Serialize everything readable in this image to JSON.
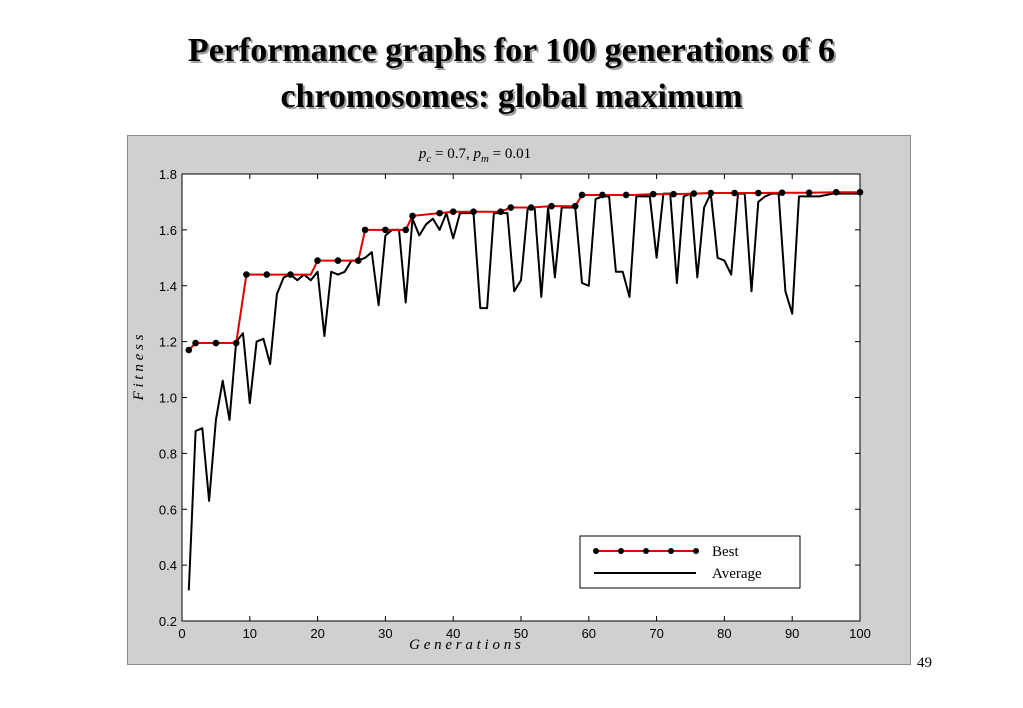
{
  "slide": {
    "title_line1": "Performance graphs for 100 generations of 6",
    "title_line2": "chromosomes: global maximum",
    "page_number": "49"
  },
  "colors": {
    "best": "#e00000",
    "average": "#000000",
    "frame": "#d0d0d0",
    "plot_bg": "#ffffff"
  },
  "chart_data": {
    "type": "line",
    "title_parts": {
      "pc_symbol": "p",
      "pc_sub": "c",
      "pc_value": " = 0.7,  ",
      "pm_symbol": "p",
      "pm_sub": "m",
      "pm_value": " = 0.01"
    },
    "xlabel": "G e n e r a t i o n s",
    "ylabel": "F i t n e s s",
    "xlim": [
      0,
      100
    ],
    "ylim": [
      0.2,
      1.8
    ],
    "xticks": [
      0,
      10,
      20,
      30,
      40,
      50,
      60,
      70,
      80,
      90,
      100
    ],
    "yticks": [
      0.2,
      0.4,
      0.6,
      0.8,
      1.0,
      1.2,
      1.4,
      1.6,
      1.8
    ],
    "ytick_labels": [
      "0.2",
      "0.4",
      "0.6",
      "0.8",
      "1.0",
      "1.2",
      "1.4",
      "1.6",
      "1.8"
    ],
    "grid": false,
    "legend_position": "bottom-right",
    "series": [
      {
        "name": "Best",
        "style": "line-markers",
        "points": [
          [
            1,
            1.17
          ],
          [
            2,
            1.195
          ],
          [
            5,
            1.195
          ],
          [
            8,
            1.195
          ],
          [
            9.5,
            1.44
          ],
          [
            12.5,
            1.44
          ],
          [
            16,
            1.44
          ],
          [
            19,
            1.44
          ],
          [
            20,
            1.49
          ],
          [
            23,
            1.49
          ],
          [
            26,
            1.49
          ],
          [
            27,
            1.6
          ],
          [
            30,
            1.6
          ],
          [
            33,
            1.6
          ],
          [
            34,
            1.65
          ],
          [
            38,
            1.66
          ],
          [
            40,
            1.665
          ],
          [
            43,
            1.665
          ],
          [
            47,
            1.665
          ],
          [
            48.5,
            1.68
          ],
          [
            51.5,
            1.68
          ],
          [
            54.5,
            1.685
          ],
          [
            58,
            1.685
          ],
          [
            59,
            1.725
          ],
          [
            62,
            1.725
          ],
          [
            65.5,
            1.725
          ],
          [
            66.5,
            1.725
          ],
          [
            69.5,
            1.728
          ],
          [
            72.5,
            1.728
          ],
          [
            75.5,
            1.73
          ],
          [
            78,
            1.732
          ],
          [
            81.5,
            1.732
          ],
          [
            85,
            1.732
          ],
          [
            88.5,
            1.733
          ],
          [
            92.5,
            1.733
          ],
          [
            96.5,
            1.735
          ],
          [
            100,
            1.735
          ]
        ],
        "markers": [
          [
            1,
            1.17
          ],
          [
            2,
            1.195
          ],
          [
            5,
            1.195
          ],
          [
            8,
            1.195
          ],
          [
            9.5,
            1.44
          ],
          [
            12.5,
            1.44
          ],
          [
            16,
            1.44
          ],
          [
            20,
            1.49
          ],
          [
            23,
            1.49
          ],
          [
            26,
            1.49
          ],
          [
            27,
            1.6
          ],
          [
            30,
            1.6
          ],
          [
            33,
            1.6
          ],
          [
            34,
            1.65
          ],
          [
            38,
            1.66
          ],
          [
            40,
            1.665
          ],
          [
            43,
            1.665
          ],
          [
            47,
            1.665
          ],
          [
            48.5,
            1.68
          ],
          [
            51.5,
            1.68
          ],
          [
            54.5,
            1.685
          ],
          [
            58,
            1.685
          ],
          [
            59,
            1.725
          ],
          [
            62,
            1.725
          ],
          [
            65.5,
            1.725
          ],
          [
            69.5,
            1.728
          ],
          [
            72.5,
            1.728
          ],
          [
            75.5,
            1.73
          ],
          [
            78,
            1.732
          ],
          [
            81.5,
            1.732
          ],
          [
            85,
            1.732
          ],
          [
            88.5,
            1.733
          ],
          [
            92.5,
            1.733
          ],
          [
            96.5,
            1.735
          ],
          [
            100,
            1.735
          ]
        ]
      },
      {
        "name": "Average",
        "style": "line",
        "points": [
          [
            1,
            0.31
          ],
          [
            2,
            0.88
          ],
          [
            3,
            0.89
          ],
          [
            4,
            0.63
          ],
          [
            5,
            0.92
          ],
          [
            6,
            1.06
          ],
          [
            7,
            0.92
          ],
          [
            8,
            1.2
          ],
          [
            9,
            1.23
          ],
          [
            10,
            0.98
          ],
          [
            11,
            1.2
          ],
          [
            12,
            1.21
          ],
          [
            13,
            1.12
          ],
          [
            14,
            1.37
          ],
          [
            15,
            1.43
          ],
          [
            16,
            1.44
          ],
          [
            17,
            1.42
          ],
          [
            18,
            1.44
          ],
          [
            19,
            1.42
          ],
          [
            20,
            1.45
          ],
          [
            21,
            1.22
          ],
          [
            22,
            1.45
          ],
          [
            23,
            1.44
          ],
          [
            24,
            1.45
          ],
          [
            25,
            1.49
          ],
          [
            26,
            1.49
          ],
          [
            27,
            1.5
          ],
          [
            28,
            1.52
          ],
          [
            29,
            1.33
          ],
          [
            30,
            1.58
          ],
          [
            31,
            1.6
          ],
          [
            32,
            1.6
          ],
          [
            33,
            1.34
          ],
          [
            34,
            1.64
          ],
          [
            35,
            1.58
          ],
          [
            36,
            1.62
          ],
          [
            37,
            1.64
          ],
          [
            38,
            1.6
          ],
          [
            39,
            1.66
          ],
          [
            40,
            1.57
          ],
          [
            41,
            1.66
          ],
          [
            42,
            1.66
          ],
          [
            43,
            1.66
          ],
          [
            44,
            1.32
          ],
          [
            45,
            1.32
          ],
          [
            46,
            1.66
          ],
          [
            47,
            1.66
          ],
          [
            48,
            1.66
          ],
          [
            49,
            1.38
          ],
          [
            50,
            1.42
          ],
          [
            51,
            1.68
          ],
          [
            52,
            1.68
          ],
          [
            53,
            1.36
          ],
          [
            54,
            1.68
          ],
          [
            55,
            1.43
          ],
          [
            56,
            1.68
          ],
          [
            57,
            1.68
          ],
          [
            58,
            1.68
          ],
          [
            59,
            1.41
          ],
          [
            60,
            1.4
          ],
          [
            61,
            1.71
          ],
          [
            62,
            1.72
          ],
          [
            63,
            1.72
          ],
          [
            64,
            1.45
          ],
          [
            65,
            1.45
          ],
          [
            66,
            1.36
          ],
          [
            67,
            1.72
          ],
          [
            68,
            1.72
          ],
          [
            69,
            1.72
          ],
          [
            70,
            1.5
          ],
          [
            71,
            1.73
          ],
          [
            72,
            1.73
          ],
          [
            73,
            1.41
          ],
          [
            74,
            1.72
          ],
          [
            75,
            1.73
          ],
          [
            76,
            1.43
          ],
          [
            77,
            1.68
          ],
          [
            78,
            1.73
          ],
          [
            79,
            1.5
          ],
          [
            80,
            1.49
          ],
          [
            81,
            1.44
          ],
          [
            82,
            1.73
          ],
          [
            83,
            1.73
          ],
          [
            84,
            1.38
          ],
          [
            85,
            1.7
          ],
          [
            86,
            1.72
          ],
          [
            87,
            1.73
          ],
          [
            88,
            1.73
          ],
          [
            89,
            1.38
          ],
          [
            90,
            1.3
          ],
          [
            91,
            1.72
          ],
          [
            92,
            1.72
          ],
          [
            93,
            1.72
          ],
          [
            94,
            1.72
          ],
          [
            95,
            1.725
          ],
          [
            96,
            1.73
          ],
          [
            97,
            1.73
          ],
          [
            98,
            1.73
          ],
          [
            99,
            1.73
          ],
          [
            100,
            1.73
          ]
        ]
      }
    ]
  }
}
